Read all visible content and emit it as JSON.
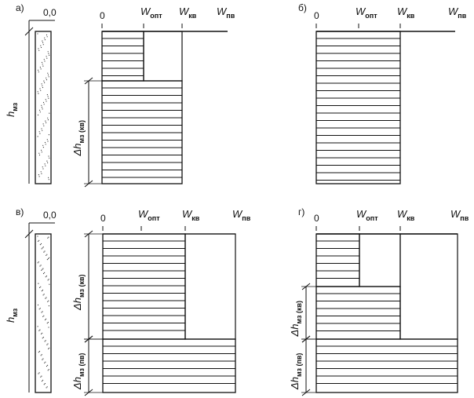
{
  "panels": [
    {
      "label": "а)",
      "layer_top": "0,0",
      "layer_height": {
        "main": "h",
        "sub": "мз"
      },
      "axis": {
        "zero": "0",
        "w_opt": {
          "main": "W",
          "sub": "опт"
        },
        "w_kv": {
          "main": "W",
          "sub": "кв"
        },
        "w_pv": {
          "main": "W",
          "sub": "пв"
        }
      },
      "dims": [
        {
          "main": "Δh",
          "sub": "мз (кв)"
        }
      ]
    },
    {
      "label": "б)",
      "axis": {
        "zero": "0",
        "w_opt": {
          "main": "W",
          "sub": "опт"
        },
        "w_kv": {
          "main": "W",
          "sub": "кв"
        },
        "w_pv": {
          "main": "W",
          "sub": "пв"
        }
      }
    },
    {
      "label": "в)",
      "layer_top": "0,0",
      "layer_height": {
        "main": "h",
        "sub": "мз"
      },
      "axis": {
        "zero": "0",
        "w_opt": {
          "main": "W",
          "sub": "опт"
        },
        "w_kv": {
          "main": "W",
          "sub": "кв"
        },
        "w_pv": {
          "main": "W",
          "sub": "пв"
        }
      },
      "dims": [
        {
          "main": "Δh",
          "sub": "мз (кв)"
        },
        {
          "main": "Δh",
          "sub": "мз (пв)"
        }
      ]
    },
    {
      "label": "г)",
      "axis": {
        "zero": "0",
        "w_opt": {
          "main": "W",
          "sub": "опт"
        },
        "w_kv": {
          "main": "W",
          "sub": "кв"
        },
        "w_pv": {
          "main": "W",
          "sub": "пв"
        }
      },
      "dims": [
        {
          "main": "Δh",
          "sub": "мз (кв)"
        },
        {
          "main": "Δh",
          "sub": "мз (пв)"
        }
      ]
    }
  ]
}
